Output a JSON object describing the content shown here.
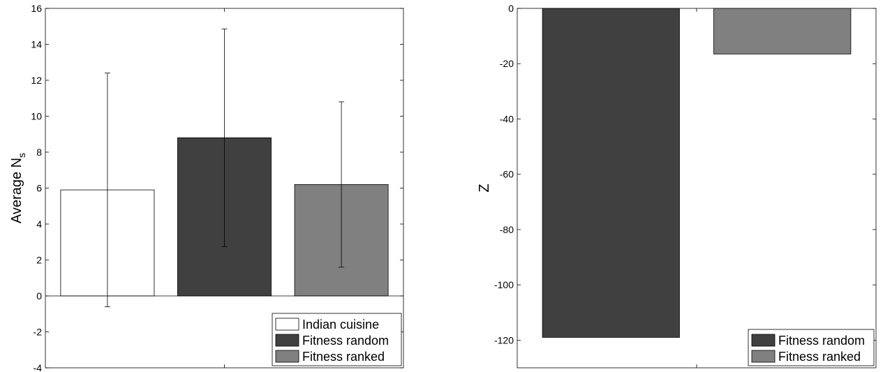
{
  "chart_data": [
    {
      "type": "bar",
      "categories": [
        "Indian cuisine",
        "Fitness random",
        "Fitness ranked"
      ],
      "series": [
        {
          "name": "Indian cuisine",
          "color": "#ffffff",
          "value": 5.9,
          "err_low": -0.6,
          "err_high": 12.4
        },
        {
          "name": "Fitness random",
          "color": "#404040",
          "value": 8.8,
          "err_low": 2.75,
          "err_high": 14.85
        },
        {
          "name": "Fitness ranked",
          "color": "#808080",
          "value": 6.2,
          "err_low": 1.6,
          "err_high": 10.8
        }
      ],
      "ylabel": "Average N",
      "ylabel_sub": "s",
      "ylim": [
        -4,
        16
      ],
      "yticks": [
        -4,
        -2,
        0,
        2,
        4,
        6,
        8,
        10,
        12,
        14,
        16
      ],
      "legend_position": "bottom-right",
      "grid": false
    },
    {
      "type": "bar",
      "categories": [
        "Fitness random",
        "Fitness ranked"
      ],
      "series": [
        {
          "name": "Fitness random",
          "color": "#404040",
          "value": -119
        },
        {
          "name": "Fitness ranked",
          "color": "#808080",
          "value": -16.5
        }
      ],
      "ylabel": "Z",
      "ylim": [
        -130,
        0
      ],
      "yticks": [
        -120,
        -100,
        -80,
        -60,
        -40,
        -20,
        0
      ],
      "legend_position": "bottom-right",
      "grid": false
    }
  ]
}
